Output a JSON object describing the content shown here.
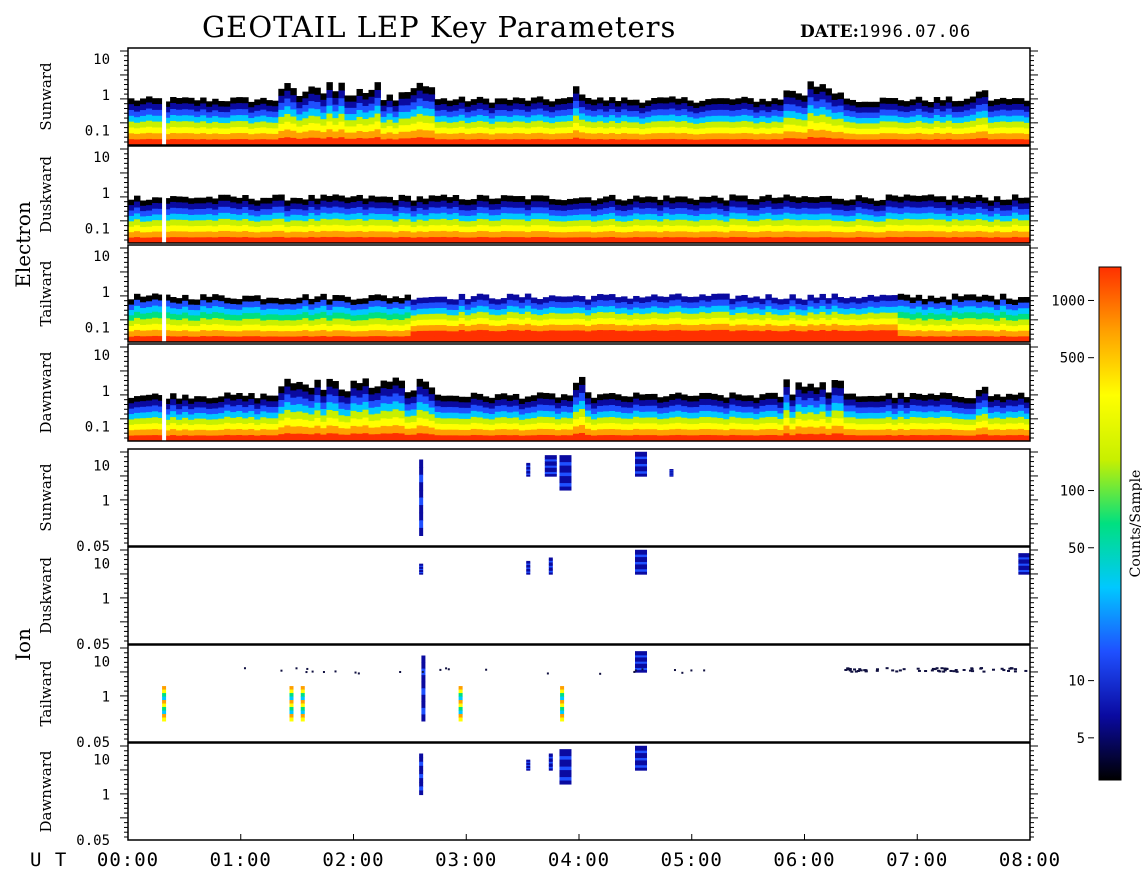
{
  "header": {
    "title": "GEOTAIL LEP Key Parameters",
    "date_label": "DATE:",
    "date_value": "1996.07.06"
  },
  "chart_data": {
    "type": "heatmap",
    "title": "GEOTAIL LEP Key Parameters",
    "date": "1996.07.06",
    "x_axis": {
      "label": "U T",
      "ticks": [
        "00:00",
        "01:00",
        "02:00",
        "03:00",
        "04:00",
        "05:00",
        "06:00",
        "07:00",
        "08:00"
      ],
      "range_hours": [
        0,
        8
      ]
    },
    "groups": [
      {
        "name": "Electron",
        "panels": [
          "Sunward",
          "Duskward",
          "Tailward",
          "Dawnward"
        ],
        "y_ticks": [
          "10",
          "1",
          "0.1"
        ],
        "y_range": [
          0.04,
          20
        ],
        "y_scale": "log"
      },
      {
        "name": "Ion",
        "panels": [
          "Sunward",
          "Duskward",
          "Tailward",
          "Dawnward"
        ],
        "y_ticks": [
          "10",
          "1",
          "0.05"
        ],
        "y_range": [
          0.05,
          30
        ],
        "y_scale": "log"
      }
    ],
    "colorbar": {
      "label": "Counts/Sample",
      "scale": "log",
      "range": [
        3,
        1500
      ],
      "ticks": [
        "1000",
        "500",
        "100",
        "50",
        "10",
        "5"
      ],
      "colors": [
        "#000000",
        "#0a0aa0",
        "#1f50ff",
        "#00c8ff",
        "#00e080",
        "#c8f000",
        "#ffff00",
        "#ffa000",
        "#ff3000"
      ]
    },
    "ion_events": {
      "Sunward": [
        {
          "t": 2.6,
          "e": [
            0.1,
            15
          ]
        },
        {
          "t": 3.55,
          "e": [
            5,
            12
          ]
        },
        {
          "t": 3.75,
          "e": [
            5,
            20
          ]
        },
        {
          "t": 3.88,
          "e": [
            2,
            20
          ]
        },
        {
          "t": 4.55,
          "e": [
            5,
            25
          ]
        },
        {
          "t": 4.82,
          "e": [
            5,
            8
          ]
        }
      ],
      "Duskward": [
        {
          "t": 2.6,
          "e": [
            5,
            10
          ]
        },
        {
          "t": 3.55,
          "e": [
            5,
            12
          ]
        },
        {
          "t": 3.75,
          "e": [
            5,
            15
          ]
        },
        {
          "t": 4.55,
          "e": [
            5,
            25
          ]
        },
        {
          "t": 7.95,
          "e": [
            5,
            20
          ]
        }
      ],
      "Tailward": [
        {
          "t": 0.32,
          "e": [
            0.2,
            2
          ]
        },
        {
          "t": 1.45,
          "e": [
            0.2,
            2
          ]
        },
        {
          "t": 1.55,
          "e": [
            0.2,
            2
          ]
        },
        {
          "t": 2.62,
          "e": [
            0.2,
            15
          ]
        },
        {
          "t": 2.95,
          "e": [
            0.2,
            2
          ]
        },
        {
          "t": 3.85,
          "e": [
            0.2,
            2
          ]
        },
        {
          "t": 4.55,
          "e": [
            5,
            20
          ]
        }
      ],
      "Dawnward": [
        {
          "t": 2.6,
          "e": [
            1,
            15
          ]
        },
        {
          "t": 3.55,
          "e": [
            5,
            10
          ]
        },
        {
          "t": 3.75,
          "e": [
            5,
            15
          ]
        },
        {
          "t": 3.88,
          "e": [
            2,
            20
          ]
        },
        {
          "t": 4.55,
          "e": [
            5,
            25
          ]
        }
      ]
    }
  }
}
